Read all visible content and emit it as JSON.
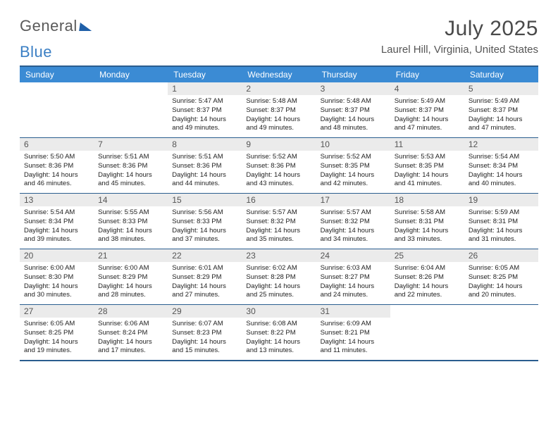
{
  "brand": {
    "word1": "General",
    "word2": "Blue"
  },
  "title": "July 2025",
  "location": "Laurel Hill, Virginia, United States",
  "colors": {
    "header_bg": "#3b8bd4",
    "rule": "#2a5d8f",
    "daynum_bg": "#ebebeb",
    "text": "#333333",
    "title_text": "#4a4a4a",
    "logo_gray": "#5a5a5a",
    "logo_blue": "#3b7fc4"
  },
  "weekdays": [
    "Sunday",
    "Monday",
    "Tuesday",
    "Wednesday",
    "Thursday",
    "Friday",
    "Saturday"
  ],
  "weeks": [
    [
      null,
      null,
      {
        "n": "1",
        "sunrise": "5:47 AM",
        "sunset": "8:37 PM",
        "daylight": "14 hours and 49 minutes."
      },
      {
        "n": "2",
        "sunrise": "5:48 AM",
        "sunset": "8:37 PM",
        "daylight": "14 hours and 49 minutes."
      },
      {
        "n": "3",
        "sunrise": "5:48 AM",
        "sunset": "8:37 PM",
        "daylight": "14 hours and 48 minutes."
      },
      {
        "n": "4",
        "sunrise": "5:49 AM",
        "sunset": "8:37 PM",
        "daylight": "14 hours and 47 minutes."
      },
      {
        "n": "5",
        "sunrise": "5:49 AM",
        "sunset": "8:37 PM",
        "daylight": "14 hours and 47 minutes."
      }
    ],
    [
      {
        "n": "6",
        "sunrise": "5:50 AM",
        "sunset": "8:36 PM",
        "daylight": "14 hours and 46 minutes."
      },
      {
        "n": "7",
        "sunrise": "5:51 AM",
        "sunset": "8:36 PM",
        "daylight": "14 hours and 45 minutes."
      },
      {
        "n": "8",
        "sunrise": "5:51 AM",
        "sunset": "8:36 PM",
        "daylight": "14 hours and 44 minutes."
      },
      {
        "n": "9",
        "sunrise": "5:52 AM",
        "sunset": "8:36 PM",
        "daylight": "14 hours and 43 minutes."
      },
      {
        "n": "10",
        "sunrise": "5:52 AM",
        "sunset": "8:35 PM",
        "daylight": "14 hours and 42 minutes."
      },
      {
        "n": "11",
        "sunrise": "5:53 AM",
        "sunset": "8:35 PM",
        "daylight": "14 hours and 41 minutes."
      },
      {
        "n": "12",
        "sunrise": "5:54 AM",
        "sunset": "8:34 PM",
        "daylight": "14 hours and 40 minutes."
      }
    ],
    [
      {
        "n": "13",
        "sunrise": "5:54 AM",
        "sunset": "8:34 PM",
        "daylight": "14 hours and 39 minutes."
      },
      {
        "n": "14",
        "sunrise": "5:55 AM",
        "sunset": "8:33 PM",
        "daylight": "14 hours and 38 minutes."
      },
      {
        "n": "15",
        "sunrise": "5:56 AM",
        "sunset": "8:33 PM",
        "daylight": "14 hours and 37 minutes."
      },
      {
        "n": "16",
        "sunrise": "5:57 AM",
        "sunset": "8:32 PM",
        "daylight": "14 hours and 35 minutes."
      },
      {
        "n": "17",
        "sunrise": "5:57 AM",
        "sunset": "8:32 PM",
        "daylight": "14 hours and 34 minutes."
      },
      {
        "n": "18",
        "sunrise": "5:58 AM",
        "sunset": "8:31 PM",
        "daylight": "14 hours and 33 minutes."
      },
      {
        "n": "19",
        "sunrise": "5:59 AM",
        "sunset": "8:31 PM",
        "daylight": "14 hours and 31 minutes."
      }
    ],
    [
      {
        "n": "20",
        "sunrise": "6:00 AM",
        "sunset": "8:30 PM",
        "daylight": "14 hours and 30 minutes."
      },
      {
        "n": "21",
        "sunrise": "6:00 AM",
        "sunset": "8:29 PM",
        "daylight": "14 hours and 28 minutes."
      },
      {
        "n": "22",
        "sunrise": "6:01 AM",
        "sunset": "8:29 PM",
        "daylight": "14 hours and 27 minutes."
      },
      {
        "n": "23",
        "sunrise": "6:02 AM",
        "sunset": "8:28 PM",
        "daylight": "14 hours and 25 minutes."
      },
      {
        "n": "24",
        "sunrise": "6:03 AM",
        "sunset": "8:27 PM",
        "daylight": "14 hours and 24 minutes."
      },
      {
        "n": "25",
        "sunrise": "6:04 AM",
        "sunset": "8:26 PM",
        "daylight": "14 hours and 22 minutes."
      },
      {
        "n": "26",
        "sunrise": "6:05 AM",
        "sunset": "8:25 PM",
        "daylight": "14 hours and 20 minutes."
      }
    ],
    [
      {
        "n": "27",
        "sunrise": "6:05 AM",
        "sunset": "8:25 PM",
        "daylight": "14 hours and 19 minutes."
      },
      {
        "n": "28",
        "sunrise": "6:06 AM",
        "sunset": "8:24 PM",
        "daylight": "14 hours and 17 minutes."
      },
      {
        "n": "29",
        "sunrise": "6:07 AM",
        "sunset": "8:23 PM",
        "daylight": "14 hours and 15 minutes."
      },
      {
        "n": "30",
        "sunrise": "6:08 AM",
        "sunset": "8:22 PM",
        "daylight": "14 hours and 13 minutes."
      },
      {
        "n": "31",
        "sunrise": "6:09 AM",
        "sunset": "8:21 PM",
        "daylight": "14 hours and 11 minutes."
      },
      null,
      null
    ]
  ],
  "labels": {
    "sunrise": "Sunrise:",
    "sunset": "Sunset:",
    "daylight": "Daylight:"
  }
}
